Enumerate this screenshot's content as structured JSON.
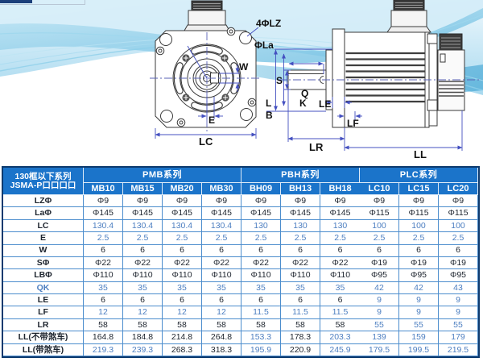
{
  "drawings": {
    "front": {
      "labels": {
        "lz4": "4ΦLZ",
        "la": "ΦLa",
        "w": "W",
        "e": "E",
        "lc": "LC"
      }
    },
    "side": {
      "labels": {
        "s": "S",
        "q": "Q",
        "k": "K",
        "le": "LE",
        "l": "L",
        "b": "B",
        "lf": "LF",
        "lr": "LR",
        "ll": "LL"
      }
    }
  },
  "table": {
    "colors": {
      "header_bg": "#1b74ca",
      "outer_border": "#0d3a6e",
      "grid": "#4c8dcd",
      "text_dark": "#1d242e",
      "text_blue": "#4d7fc1"
    },
    "header": {
      "series_col_line1": "130框以下系列",
      "series_col_line2": "JSMA-P口口口口",
      "groups": [
        {
          "label": "PMB系列",
          "models": [
            "MB10",
            "MB15",
            "MB20",
            "MB30"
          ]
        },
        {
          "label": "PBH系列",
          "models": [
            "BH09",
            "BH13",
            "BH18"
          ]
        },
        {
          "label": "PLC系列",
          "models": [
            "LC10",
            "LC15",
            "LC20"
          ]
        }
      ]
    },
    "rows": [
      {
        "label": "LZΦ",
        "label_blue": false,
        "values": [
          "Φ9",
          "Φ9",
          "Φ9",
          "Φ9",
          "Φ9",
          "Φ9",
          "Φ9",
          "Φ9",
          "Φ9",
          "Φ9"
        ],
        "blue": [
          0,
          0,
          0,
          0,
          0,
          0,
          0,
          0,
          0,
          0
        ]
      },
      {
        "label": "LaΦ",
        "label_blue": false,
        "values": [
          "Φ145",
          "Φ145",
          "Φ145",
          "Φ145",
          "Φ145",
          "Φ145",
          "Φ145",
          "Φ115",
          "Φ115",
          "Φ115"
        ],
        "blue": [
          0,
          0,
          0,
          0,
          0,
          0,
          0,
          0,
          0,
          0
        ]
      },
      {
        "label": "LC",
        "label_blue": false,
        "values": [
          "130.4",
          "130.4",
          "130.4",
          "130.4",
          "130",
          "130",
          "130",
          "100",
          "100",
          "100"
        ],
        "blue": [
          1,
          1,
          1,
          1,
          1,
          1,
          1,
          1,
          1,
          1
        ]
      },
      {
        "label": "E",
        "label_blue": false,
        "values": [
          "2.5",
          "2.5",
          "2.5",
          "2.5",
          "2.5",
          "2.5",
          "2.5",
          "2.5",
          "2.5",
          "2.5"
        ],
        "blue": [
          1,
          1,
          1,
          1,
          1,
          1,
          1,
          1,
          1,
          1
        ]
      },
      {
        "label": "W",
        "label_blue": false,
        "values": [
          "6",
          "6",
          "6",
          "6",
          "6",
          "6",
          "6",
          "6",
          "6",
          "6"
        ],
        "blue": [
          0,
          0,
          0,
          0,
          0,
          0,
          0,
          0,
          0,
          0
        ]
      },
      {
        "label": "SΦ",
        "label_blue": false,
        "values": [
          "Φ22",
          "Φ22",
          "Φ22",
          "Φ22",
          "Φ22",
          "Φ22",
          "Φ22",
          "Φ19",
          "Φ19",
          "Φ19"
        ],
        "blue": [
          0,
          0,
          0,
          0,
          0,
          0,
          0,
          0,
          0,
          0
        ]
      },
      {
        "label": "LBΦ",
        "label_blue": false,
        "values": [
          "Φ110",
          "Φ110",
          "Φ110",
          "Φ110",
          "Φ110",
          "Φ110",
          "Φ110",
          "Φ95",
          "Φ95",
          "Φ95"
        ],
        "blue": [
          0,
          0,
          0,
          0,
          0,
          0,
          0,
          0,
          0,
          0
        ]
      },
      {
        "label": "QK",
        "label_blue": true,
        "values": [
          "35",
          "35",
          "35",
          "35",
          "35",
          "35",
          "35",
          "42",
          "42",
          "43"
        ],
        "blue": [
          1,
          1,
          1,
          1,
          1,
          1,
          1,
          1,
          1,
          1
        ]
      },
      {
        "label": "LE",
        "label_blue": false,
        "values": [
          "6",
          "6",
          "6",
          "6",
          "6",
          "6",
          "6",
          "9",
          "9",
          "9"
        ],
        "blue": [
          0,
          0,
          0,
          0,
          0,
          0,
          0,
          1,
          1,
          1
        ]
      },
      {
        "label": "LF",
        "label_blue": false,
        "values": [
          "12",
          "12",
          "12",
          "12",
          "11.5",
          "11.5",
          "11.5",
          "9",
          "9",
          "9"
        ],
        "blue": [
          1,
          1,
          1,
          1,
          1,
          1,
          1,
          1,
          1,
          1
        ]
      },
      {
        "label": "LR",
        "label_blue": false,
        "values": [
          "58",
          "58",
          "58",
          "58",
          "58",
          "58",
          "58",
          "55",
          "55",
          "55"
        ],
        "blue": [
          0,
          0,
          0,
          0,
          0,
          0,
          0,
          1,
          1,
          1
        ]
      },
      {
        "label": "LL(不带煞车)",
        "label_blue": false,
        "values": [
          "164.8",
          "184.8",
          "214.8",
          "264.8",
          "153.3",
          "178.3",
          "203.3",
          "139",
          "159",
          "179"
        ],
        "blue": [
          0,
          0,
          0,
          0,
          1,
          0,
          1,
          1,
          1,
          1
        ]
      },
      {
        "label": "LL(带煞车)",
        "label_blue": false,
        "values": [
          "219.3",
          "239.3",
          "268.3",
          "318.3",
          "195.9",
          "220.9",
          "245.9",
          "179.5",
          "199.5",
          "219.5"
        ],
        "blue": [
          1,
          1,
          0,
          0,
          1,
          0,
          1,
          1,
          1,
          1
        ]
      }
    ]
  }
}
